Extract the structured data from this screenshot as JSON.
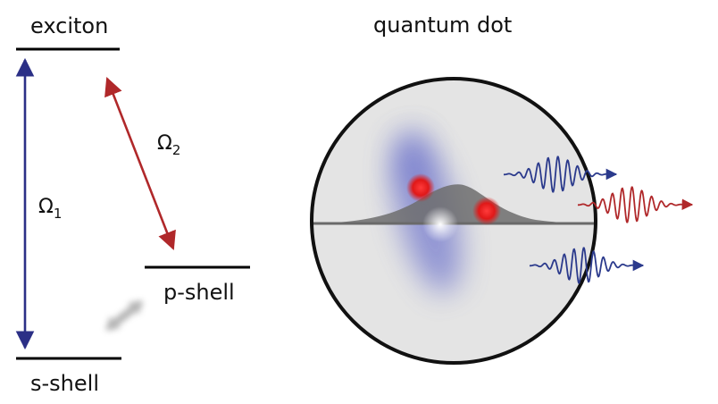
{
  "levels": {
    "exciton": "exciton",
    "p_shell": "p-shell",
    "s_shell": "s-shell"
  },
  "transitions": {
    "omega1": {
      "symbol": "Ω",
      "subscript": "1",
      "color": "#2b2f86"
    },
    "omega2": {
      "symbol": "Ω",
      "subscript": "2",
      "color": "#b0282a"
    }
  },
  "dot": {
    "title": "quantum dot"
  },
  "colors": {
    "level_line": "#000000",
    "relaxation_arrow": "#a8a8a8",
    "dot_fill": "#e4e4e4",
    "dot_outline": "#111111",
    "wavefunction_fill": "#707070",
    "carrier": "#e02020",
    "emission_blue": "#2b3a8c",
    "emission_red": "#b0282a"
  },
  "icons": {
    "relaxation": "gray-double-arrow",
    "carriers": "red-dot",
    "emission": "wave-packet-arrow"
  }
}
